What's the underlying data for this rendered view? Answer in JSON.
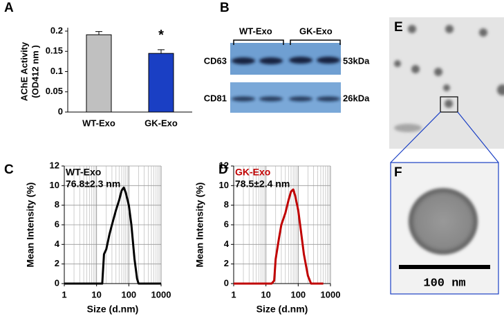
{
  "panel_labels": [
    "A",
    "B",
    "C",
    "D",
    "E",
    "F"
  ],
  "chart_data": [
    {
      "type": "bar",
      "ylabel": [
        "AChE Activity",
        "(OD412 nm )"
      ],
      "categories": [
        "WT-Exo",
        "GK-Exo"
      ],
      "values": [
        0.191,
        0.145
      ],
      "errors": [
        0.008,
        0.009
      ],
      "colors": [
        "#c0c0c0",
        "#1a3fc4"
      ],
      "annotation": "*",
      "ylim": [
        0,
        0.2
      ],
      "yticks": [
        0,
        0.05,
        0.1,
        0.15,
        0.2
      ]
    },
    {
      "type": "line",
      "log_x": true,
      "grid": true,
      "xlabel": "Size (d.nm)",
      "ylabel": "Mean Intensity (%)",
      "series": [
        {
          "name": "WT-Exo",
          "color": "#000000",
          "x": [
            1,
            12,
            15,
            17,
            20,
            25,
            30,
            40,
            50,
            60,
            70,
            80,
            100,
            120,
            150,
            180,
            200,
            250,
            1000
          ],
          "values": [
            0,
            0,
            0,
            3,
            3.5,
            5,
            6,
            7.5,
            8.5,
            9.5,
            9.8,
            9.3,
            8,
            6,
            2.5,
            0.5,
            0,
            0,
            0
          ]
        }
      ],
      "annotation": "76.8±2.3 nm",
      "xlim": [
        1,
        1000
      ],
      "xticks": [
        1,
        10,
        100,
        1000
      ],
      "ylim": [
        0,
        12
      ],
      "yticks": [
        0,
        2,
        4,
        6,
        8,
        10,
        12
      ]
    },
    {
      "type": "line",
      "log_x": true,
      "grid": true,
      "xlabel": "Size (d.nm)",
      "ylabel": "Mean Intensity (%)",
      "series": [
        {
          "name": "GK-Exo",
          "color": "#c00000",
          "x": [
            1,
            15,
            18,
            20,
            25,
            30,
            40,
            50,
            60,
            70,
            80,
            100,
            120,
            150,
            200,
            250,
            600
          ],
          "values": [
            0,
            0,
            0.3,
            2.5,
            4.5,
            6,
            7.2,
            8.5,
            9.4,
            9.6,
            9,
            7.5,
            5.5,
            3,
            0.8,
            0,
            0
          ]
        }
      ],
      "annotation": "78.5±2.4 nm",
      "xlim": [
        1,
        1000
      ],
      "xticks": [
        1,
        10,
        100,
        1000
      ],
      "ylim": [
        0,
        12
      ],
      "yticks": [
        0,
        2,
        4,
        6,
        8,
        10,
        12
      ]
    }
  ],
  "blot": {
    "groups": [
      "WT-Exo",
      "GK-Exo"
    ],
    "rows": [
      {
        "name": "CD63",
        "size": "53kDa"
      },
      {
        "name": "CD81",
        "size": "26kDa"
      }
    ]
  },
  "micrograph": {
    "scale_bar": "100 nm"
  }
}
